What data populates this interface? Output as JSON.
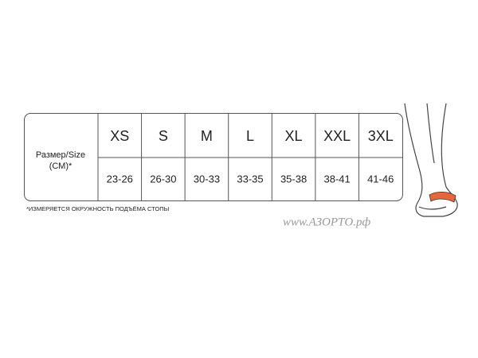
{
  "table": {
    "row_label": [
      "Размер/Size",
      "(СМ)*"
    ],
    "sizes": [
      "XS",
      "S",
      "M",
      "L",
      "XL",
      "XXL",
      "3XL"
    ],
    "ranges": [
      "23-26",
      "26-30",
      "30-33",
      "33-35",
      "35-38",
      "38-41",
      "41-46"
    ]
  },
  "footnote": "*ИЗМЕРЯЕТСЯ ОКРУЖНОСТЬ ПОДЪЁМА СТОПЫ",
  "watermark": "www.АЗОРТО.рф"
}
